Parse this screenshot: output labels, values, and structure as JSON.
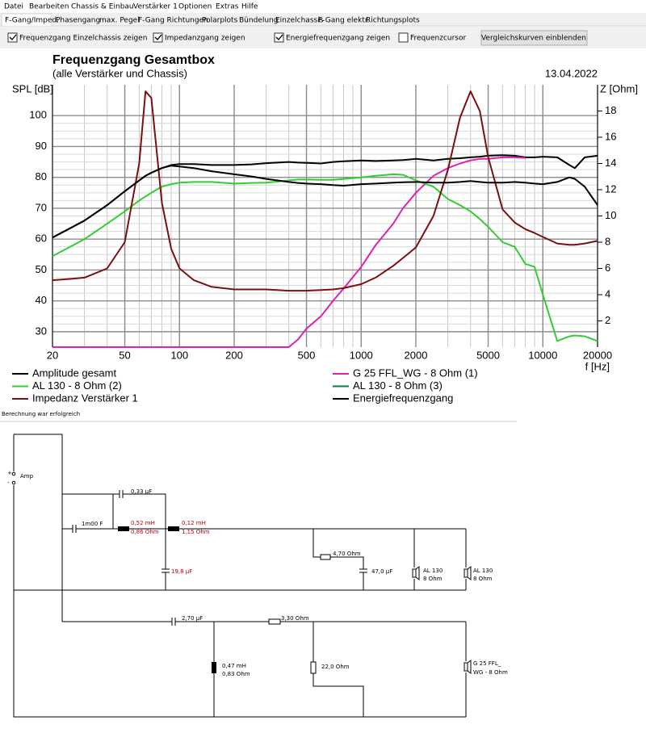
{
  "menu": [
    "Datei",
    "Bearbeiten",
    "Chassis & Einbau",
    "Verstärker 1",
    "Optionen",
    "Extras",
    "Hilfe"
  ],
  "tabs": [
    "F-Gang/Imped.",
    "Phasengang",
    "max. Pegel",
    "F-Gang Richtungen",
    "Polarplots",
    "Bündelung",
    "Einzelchassis",
    "F-Gang elektr.",
    "Richtungsplots"
  ],
  "options": [
    {
      "label": "Frequenzgang Einzelchassis zeigen",
      "checked": true
    },
    {
      "label": "Impedanzgang zeigen",
      "checked": true
    },
    {
      "label": "Energiefrequenzgang zeigen",
      "checked": true
    },
    {
      "label": "Frequenzcursor",
      "checked": false
    }
  ],
  "button": "Vergleichskurven einblenden",
  "chart_data": {
    "type": "line",
    "title": "Frequenzgang Gesamtbox",
    "subtitle": "(alle Verstärker und Chassis)",
    "date": "13.04.2022",
    "xlabel": "f [Hz]",
    "ylabel": "SPL [dB]",
    "y2label": "Z [Ohm]",
    "log_x": true,
    "grid": true,
    "xlim": [
      20,
      20000
    ],
    "xticks": [
      20,
      50,
      100,
      200,
      500,
      1000,
      2000,
      5000,
      10000,
      20000
    ],
    "ylim": [
      25,
      110
    ],
    "yticks": [
      30,
      40,
      50,
      60,
      70,
      80,
      90,
      100
    ],
    "y2lim": [
      0,
      20
    ],
    "y2ticks": [
      2,
      4,
      6,
      8,
      10,
      12,
      14,
      16,
      18
    ],
    "x": [
      20,
      25,
      30,
      40,
      50,
      60,
      65,
      70,
      80,
      90,
      100,
      120,
      150,
      200,
      250,
      300,
      400,
      450,
      500,
      600,
      700,
      800,
      1000,
      1200,
      1500,
      1700,
      2000,
      2500,
      3000,
      3500,
      4000,
      4500,
      5000,
      6000,
      7000,
      8000,
      9000,
      10000,
      12000,
      14000,
      15000,
      17000,
      20000
    ],
    "series": [
      {
        "name": "Amplitude gesamt",
        "color": "#000000",
        "values": [
          60.5,
          63.5,
          66,
          71,
          75.5,
          79,
          80.5,
          81.5,
          83,
          84,
          84.3,
          84.3,
          84,
          84,
          84.2,
          84.6,
          85,
          84.8,
          84.7,
          84.5,
          85,
          85.2,
          85.5,
          85.3,
          85.5,
          85.6,
          86,
          85.5,
          86,
          86.2,
          86.5,
          86.7,
          87,
          87.2,
          87,
          86.5,
          86.5,
          86.7,
          86.5,
          84,
          83,
          86.5,
          87
        ]
      },
      {
        "name": "G 25 FFL_WG - 8 Ohm (1)",
        "color": "#e020b0",
        "values": [
          25,
          25,
          25,
          25,
          25,
          25,
          25,
          25,
          25,
          25,
          25,
          25,
          25,
          25,
          25,
          25,
          25,
          27.5,
          31,
          35,
          40,
          44,
          51,
          58,
          65,
          70,
          75,
          80.5,
          83,
          84.5,
          85.5,
          86,
          86,
          86.5,
          86.5,
          86.3,
          null,
          null,
          null,
          null,
          null,
          null,
          null
        ]
      },
      {
        "name": "AL 130 - 8 Ohm (2)",
        "color": "#33cc33",
        "values": [
          54.5,
          57.5,
          60,
          65,
          69,
          72.5,
          73.8,
          75,
          77,
          77.8,
          78.3,
          78.5,
          78.5,
          78,
          78.2,
          78.3,
          79,
          79.3,
          79.3,
          79.2,
          79.2,
          79.5,
          80,
          80.5,
          81,
          80.8,
          79,
          77,
          73,
          71,
          69,
          66.5,
          64,
          59,
          57.5,
          52,
          51,
          42,
          27,
          28.5,
          28.8,
          28.5,
          27
        ]
      },
      {
        "name": "AL 130 - 8 Ohm (3)",
        "color": "#008040"
      },
      {
        "name": "Impedanz Verstärker 1",
        "color": "#7a1010",
        "axis": "y2",
        "values": [
          5.1,
          5.2,
          5.3,
          6,
          8,
          14,
          19.5,
          19,
          11,
          7.5,
          6,
          5.1,
          4.6,
          4.4,
          4.4,
          4.4,
          4.3,
          4.3,
          4.3,
          4.35,
          4.4,
          4.5,
          4.8,
          5.3,
          6.2,
          6.8,
          7.6,
          10,
          13.5,
          17.5,
          19.5,
          18,
          14.5,
          10.5,
          9.5,
          9,
          8.7,
          8.4,
          7.9,
          7.8,
          7.8,
          7.9,
          8.1
        ]
      },
      {
        "name": "Energiefrequenzgang",
        "color": "#000000",
        "values": [
          60.5,
          63.5,
          66,
          71,
          75.5,
          79,
          80.5,
          81.5,
          83,
          83.8,
          83.5,
          83,
          82,
          81,
          80.3,
          79.5,
          78.5,
          78.2,
          78,
          77.8,
          77.5,
          77.3,
          77.8,
          78,
          78.3,
          78.4,
          78.5,
          78.3,
          78.3,
          78.5,
          78.8,
          78.5,
          78.3,
          78.3,
          78.5,
          78.3,
          78,
          77.8,
          78.5,
          80,
          79.5,
          77,
          71
        ]
      }
    ]
  },
  "status": "Berechnung war erfolgreich",
  "circuit": {
    "labels": [
      "Amp",
      "0,33 µF",
      "1m00 F",
      "0,52 mH",
      "0,86 Ohm",
      "0,12 mH",
      "1,15 Ohm",
      "19,8 µF",
      "4,70 Ohm",
      "47,0 µF",
      "AL 130",
      "8 Ohm",
      "AL 130",
      "8 Ohm",
      "2,70 µF",
      "3,30 Ohm",
      "0,47 mH",
      "0,83 Ohm",
      "22,0 Ohm",
      "G 25 FFL_",
      "WG - 8 Ohm",
      "+",
      "-"
    ]
  }
}
